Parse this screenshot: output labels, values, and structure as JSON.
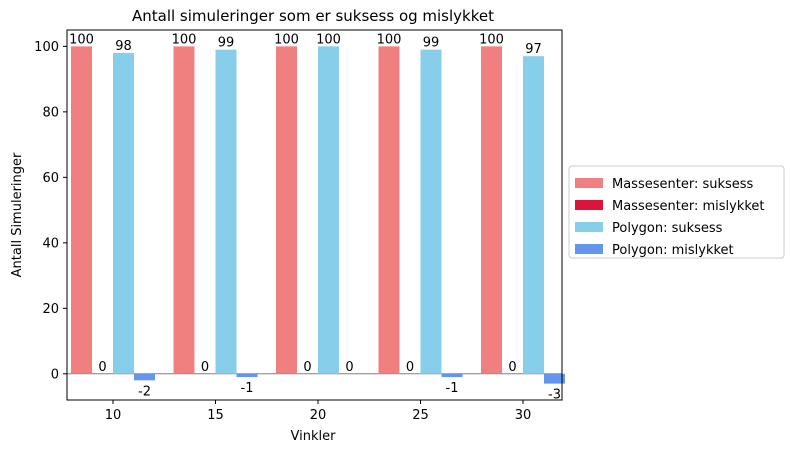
{
  "chart_data": {
    "type": "bar",
    "title": "Antall simuleringer som er suksess og mislykket",
    "xlabel": "Vinkler",
    "ylabel": "Antall Simuleringer",
    "categories": [
      "10",
      "15",
      "20",
      "25",
      "30"
    ],
    "ylim": [
      -8,
      105
    ],
    "yticks": [
      0,
      20,
      40,
      60,
      80,
      100
    ],
    "grid": false,
    "legend_position": "right",
    "zero_line": true,
    "series": [
      {
        "name": "Massesenter: suksess",
        "color": "#f08080",
        "values": [
          100,
          100,
          100,
          100,
          100
        ]
      },
      {
        "name": "Massesenter: mislykket",
        "color": "#dc143c",
        "values": [
          0,
          0,
          0,
          0,
          0
        ]
      },
      {
        "name": "Polygon: suksess",
        "color": "#87ceeb",
        "values": [
          98,
          99,
          100,
          99,
          97
        ]
      },
      {
        "name": "Polygon: mislykket",
        "color": "#6495ed",
        "values": [
          -2,
          -1,
          0,
          -1,
          -3
        ]
      }
    ]
  }
}
